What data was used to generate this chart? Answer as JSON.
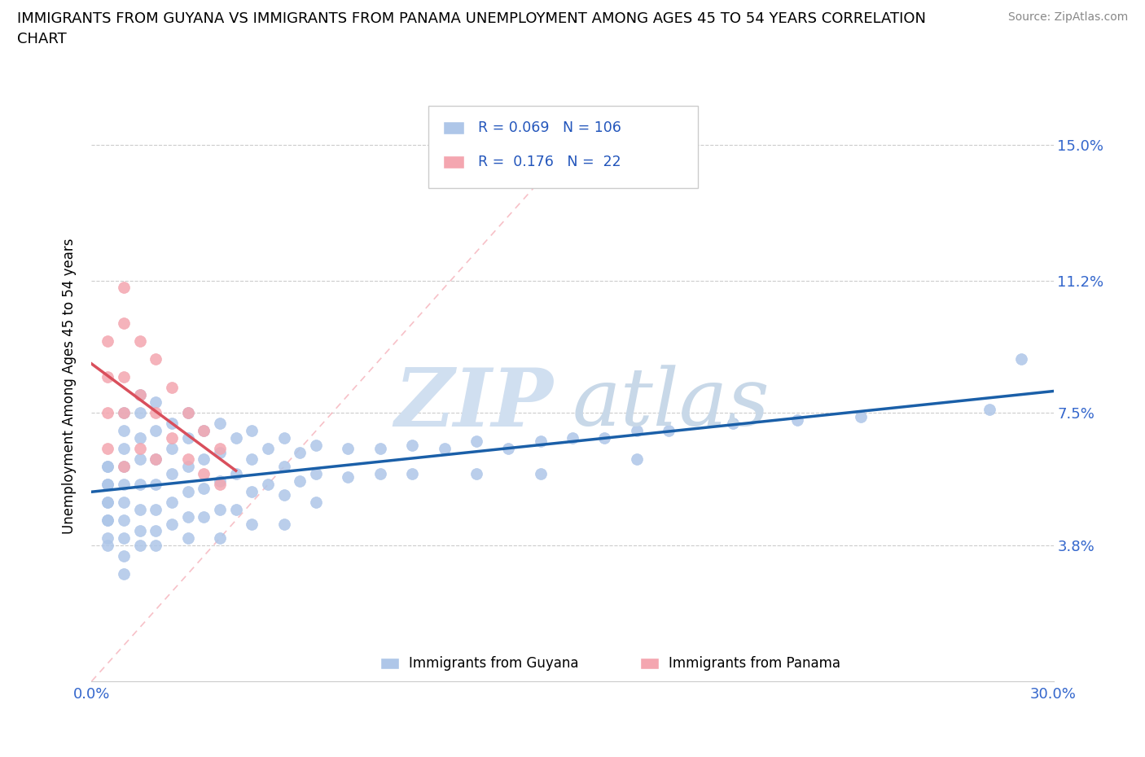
{
  "title_line1": "IMMIGRANTS FROM GUYANA VS IMMIGRANTS FROM PANAMA UNEMPLOYMENT AMONG AGES 45 TO 54 YEARS CORRELATION",
  "title_line2": "CHART",
  "source": "Source: ZipAtlas.com",
  "xlim": [
    0.0,
    0.3
  ],
  "ylim": [
    0.0,
    0.165
  ],
  "ylabel": "Unemployment Among Ages 45 to 54 years",
  "legend_label1": "Immigrants from Guyana",
  "legend_label2": "Immigrants from Panama",
  "R1": "0.069",
  "N1": "106",
  "R2": "0.176",
  "N2": "22",
  "color_guyana": "#aec6e8",
  "color_panama": "#f4a6b0",
  "line_color_guyana": "#1a5fa8",
  "line_color_panama": "#d94f5c",
  "ytick_vals": [
    0.038,
    0.075,
    0.112,
    0.15
  ],
  "ytick_labels": [
    "3.8%",
    "7.5%",
    "11.2%",
    "15.0%"
  ],
  "xtick_vals": [
    0.0,
    0.1,
    0.2,
    0.3
  ],
  "xtick_labels": [
    "0.0%",
    "",
    "",
    "30.0%"
  ],
  "guyana_x": [
    0.005,
    0.005,
    0.005,
    0.005,
    0.005,
    0.005,
    0.005,
    0.005,
    0.005,
    0.005,
    0.01,
    0.01,
    0.01,
    0.01,
    0.01,
    0.01,
    0.01,
    0.01,
    0.01,
    0.01,
    0.015,
    0.015,
    0.015,
    0.015,
    0.015,
    0.015,
    0.015,
    0.015,
    0.02,
    0.02,
    0.02,
    0.02,
    0.02,
    0.02,
    0.02,
    0.025,
    0.025,
    0.025,
    0.025,
    0.025,
    0.03,
    0.03,
    0.03,
    0.03,
    0.03,
    0.03,
    0.035,
    0.035,
    0.035,
    0.035,
    0.04,
    0.04,
    0.04,
    0.04,
    0.04,
    0.045,
    0.045,
    0.045,
    0.05,
    0.05,
    0.05,
    0.05,
    0.055,
    0.055,
    0.06,
    0.06,
    0.06,
    0.06,
    0.065,
    0.065,
    0.07,
    0.07,
    0.07,
    0.08,
    0.08,
    0.09,
    0.09,
    0.1,
    0.1,
    0.11,
    0.12,
    0.12,
    0.13,
    0.14,
    0.14,
    0.15,
    0.16,
    0.17,
    0.17,
    0.18,
    0.2,
    0.22,
    0.24,
    0.28,
    0.29
  ],
  "guyana_y": [
    0.06,
    0.06,
    0.055,
    0.055,
    0.05,
    0.05,
    0.045,
    0.045,
    0.04,
    0.038,
    0.075,
    0.07,
    0.065,
    0.06,
    0.055,
    0.05,
    0.045,
    0.04,
    0.035,
    0.03,
    0.08,
    0.075,
    0.068,
    0.062,
    0.055,
    0.048,
    0.042,
    0.038,
    0.078,
    0.07,
    0.062,
    0.055,
    0.048,
    0.042,
    0.038,
    0.072,
    0.065,
    0.058,
    0.05,
    0.044,
    0.075,
    0.068,
    0.06,
    0.053,
    0.046,
    0.04,
    0.07,
    0.062,
    0.054,
    0.046,
    0.072,
    0.064,
    0.056,
    0.048,
    0.04,
    0.068,
    0.058,
    0.048,
    0.07,
    0.062,
    0.053,
    0.044,
    0.065,
    0.055,
    0.068,
    0.06,
    0.052,
    0.044,
    0.064,
    0.056,
    0.066,
    0.058,
    0.05,
    0.065,
    0.057,
    0.065,
    0.058,
    0.066,
    0.058,
    0.065,
    0.067,
    0.058,
    0.065,
    0.067,
    0.058,
    0.068,
    0.068,
    0.07,
    0.062,
    0.07,
    0.072,
    0.073,
    0.074,
    0.076,
    0.09
  ],
  "panama_x": [
    0.005,
    0.005,
    0.005,
    0.005,
    0.01,
    0.01,
    0.01,
    0.01,
    0.01,
    0.015,
    0.015,
    0.015,
    0.02,
    0.02,
    0.02,
    0.025,
    0.025,
    0.03,
    0.03,
    0.035,
    0.035,
    0.04,
    0.04
  ],
  "panama_y": [
    0.095,
    0.085,
    0.075,
    0.065,
    0.11,
    0.1,
    0.085,
    0.075,
    0.06,
    0.095,
    0.08,
    0.065,
    0.09,
    0.075,
    0.062,
    0.082,
    0.068,
    0.075,
    0.062,
    0.07,
    0.058,
    0.065,
    0.055
  ]
}
